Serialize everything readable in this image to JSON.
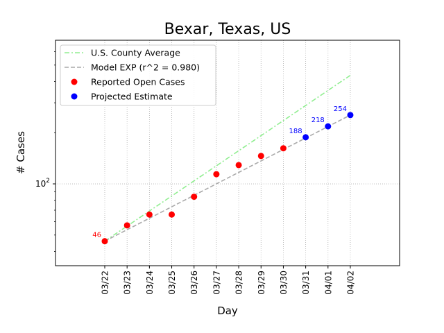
{
  "chart_data": {
    "type": "scatter",
    "title": "Bexar, Texas, US",
    "xlabel": "Day",
    "ylabel": "# Cases",
    "yscale": "log",
    "ylim": [
      33,
      700
    ],
    "y_tick_labels": [
      {
        "value": 100,
        "base": "10",
        "exp": "2"
      }
    ],
    "categories": [
      "03/22",
      "03/23",
      "03/24",
      "03/25",
      "03/26",
      "03/27",
      "03/28",
      "03/29",
      "03/30",
      "03/31",
      "04/01",
      "04/02"
    ],
    "grid": true,
    "legend_position": "top-left",
    "series": [
      {
        "name": "U.S. County Average",
        "kind": "line",
        "style": "dashdot",
        "color": "#90ee90",
        "x": [
          "03/22",
          "04/02"
        ],
        "values": [
          46,
          435
        ]
      },
      {
        "name": "Model EXP (r^2 = 0.980)",
        "kind": "line",
        "style": "dashed",
        "color": "#a9a9a9",
        "x": [
          "03/22",
          "04/02"
        ],
        "values": [
          46,
          254
        ]
      },
      {
        "name": "Reported Open Cases",
        "kind": "scatter",
        "color": "#ff0000",
        "x": [
          "03/22",
          "03/23",
          "03/24",
          "03/25",
          "03/26",
          "03/27",
          "03/28",
          "03/29",
          "03/30"
        ],
        "values": [
          46,
          57,
          66,
          66,
          84,
          114,
          129,
          146,
          162
        ]
      },
      {
        "name": "Projected Estimate",
        "kind": "scatter",
        "color": "#0000ff",
        "x": [
          "03/31",
          "04/01",
          "04/02"
        ],
        "values": [
          188,
          218,
          254
        ]
      }
    ],
    "annotations": [
      {
        "text": "46",
        "x": "03/22",
        "y": 46,
        "color": "#ff0000"
      },
      {
        "text": "188",
        "x": "03/31",
        "y": 188,
        "color": "#0000ff"
      },
      {
        "text": "218",
        "x": "04/01",
        "y": 218,
        "color": "#0000ff"
      },
      {
        "text": "254",
        "x": "04/02",
        "y": 254,
        "color": "#0000ff"
      }
    ]
  }
}
